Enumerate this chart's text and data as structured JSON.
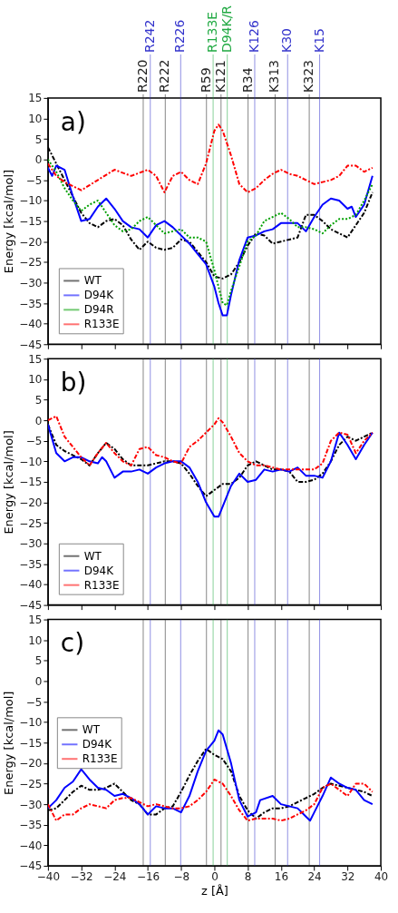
{
  "chart_data": [
    {
      "type": "line",
      "annotations": [
        "a)"
      ],
      "ylabel": "Energy [kcal/mol]",
      "xlim": [
        -40,
        40
      ],
      "xticks": [
        -40,
        -32,
        -24,
        -16,
        -8,
        0,
        8,
        16,
        24,
        32,
        40
      ],
      "ylim": [
        -45,
        15
      ],
      "yticks": [
        -45,
        -40,
        -35,
        -30,
        -25,
        -20,
        -15,
        -10,
        -5,
        0,
        5,
        10,
        15
      ],
      "tick_labels": "y",
      "grid": false,
      "legend": "bottom left",
      "ref_lines": [
        {
          "axis": "x",
          "value": -17.1,
          "label": "R220",
          "color": "#222222"
        },
        {
          "axis": "x",
          "value": -15.4,
          "label": "R242",
          "color": "#3333cc"
        },
        {
          "axis": "x",
          "value": -11.8,
          "label": "R222",
          "color": "#222222"
        },
        {
          "axis": "x",
          "value": -8.1,
          "label": "R226",
          "color": "#3333cc"
        },
        {
          "axis": "x",
          "value": -1.9,
          "label": "R59",
          "color": "#222222"
        },
        {
          "axis": "x",
          "value": -0.3,
          "label": "R133E",
          "color": "#22aa44"
        },
        {
          "axis": "x",
          "value": 1.6,
          "label": "K121",
          "color": "#222222"
        },
        {
          "axis": "x",
          "value": 3.1,
          "label": "D94K/R",
          "color": "#22aa44"
        },
        {
          "axis": "x",
          "value": 8.1,
          "label": "R34",
          "color": "#222222"
        },
        {
          "axis": "x",
          "value": 9.7,
          "label": "K126",
          "color": "#3333cc"
        },
        {
          "axis": "x",
          "value": 14.6,
          "label": "K313",
          "color": "#222222"
        },
        {
          "axis": "x",
          "value": 17.6,
          "label": "K30",
          "color": "#3333cc"
        },
        {
          "axis": "x",
          "value": 22.8,
          "label": "K323",
          "color": "#222222"
        },
        {
          "axis": "x",
          "value": 25.3,
          "label": "K15",
          "color": "#3333cc"
        }
      ],
      "series": [
        {
          "name": "WT",
          "color": "#000000",
          "line_style": "dashed",
          "x": [
            -40,
            -36,
            -32,
            -30,
            -28,
            -26,
            -24,
            -22,
            -20,
            -18,
            -16,
            -14,
            -12,
            -10,
            -8,
            -6,
            -4,
            -2,
            0,
            2,
            4,
            6,
            8,
            10,
            12,
            14,
            16,
            18,
            20,
            22,
            24,
            26,
            28,
            30,
            32,
            34,
            36,
            38
          ],
          "values": [
            3,
            -5,
            -13,
            -15.5,
            -16.5,
            -15,
            -14.5,
            -16,
            -19.5,
            -22,
            -20,
            -21.5,
            -22,
            -21.5,
            -19.5,
            -20,
            -22.5,
            -25,
            -28.5,
            -29,
            -28,
            -25,
            -21,
            -18,
            -18.5,
            -20.5,
            -20,
            -19.5,
            -19,
            -13.5,
            -13.5,
            -15,
            -17,
            -18,
            -19,
            -16,
            -13,
            -8
          ]
        },
        {
          "name": "D94K",
          "color": "#0000ff",
          "line_style": "solid",
          "x": [
            -40,
            -39,
            -38,
            -36,
            -34,
            -32,
            -30,
            -28,
            -26,
            -24,
            -22,
            -20,
            -18,
            -16,
            -14,
            -12,
            -10,
            -8,
            -6,
            -4,
            -2,
            0,
            1,
            2,
            3,
            4,
            6,
            8,
            10,
            12,
            14,
            16,
            18,
            20,
            22,
            24,
            26,
            28,
            30,
            32,
            33,
            34,
            36,
            38
          ],
          "values": [
            -2,
            -4,
            -1.5,
            -2.5,
            -9,
            -15,
            -14.5,
            -11.5,
            -9.5,
            -12,
            -15,
            -16.5,
            -17,
            -19,
            -16,
            -15,
            -16.5,
            -18.5,
            -20.5,
            -23,
            -25.5,
            -31,
            -35,
            -38,
            -38,
            -33,
            -24.5,
            -19,
            -18.5,
            -17.5,
            -17,
            -15.5,
            -15.5,
            -15.5,
            -17.5,
            -14,
            -11,
            -9.5,
            -10,
            -12,
            -11.5,
            -14,
            -11,
            -4
          ]
        },
        {
          "name": "D94R",
          "color": "#00a000",
          "line_style": "dotted",
          "x": [
            -40,
            -38,
            -36,
            -34,
            -32,
            -30,
            -28,
            -26,
            -24,
            -22,
            -20,
            -18,
            -16,
            -14,
            -12,
            -10,
            -8,
            -6,
            -4,
            -2,
            0,
            2,
            3,
            4,
            6,
            8,
            10,
            12,
            14,
            16,
            18,
            20,
            22,
            24,
            26,
            28,
            30,
            32,
            34,
            36,
            38
          ],
          "values": [
            0,
            -3,
            -7,
            -10,
            -12.5,
            -11,
            -10,
            -13,
            -16,
            -17.5,
            -17,
            -15,
            -14,
            -16,
            -18,
            -17.5,
            -17,
            -19,
            -19,
            -20,
            -27,
            -35,
            -35.5,
            -32,
            -26,
            -20,
            -18.5,
            -15,
            -14,
            -13,
            -14.5,
            -16.5,
            -16.5,
            -17,
            -18,
            -16,
            -14.5,
            -14.5,
            -13.5,
            -10,
            -6
          ]
        },
        {
          "name": "R133E",
          "color": "#ff0000",
          "line_style": "dashed",
          "x": [
            -40,
            -38,
            -36,
            -34,
            -32,
            -28,
            -24,
            -20,
            -16,
            -14,
            -12,
            -10,
            -8,
            -6,
            -4,
            -2,
            0,
            1,
            2,
            4,
            6,
            8,
            10,
            12,
            14,
            16,
            18,
            20,
            22,
            24,
            26,
            28,
            30,
            32,
            34,
            36,
            38
          ],
          "values": [
            -1,
            -4,
            -5.5,
            -6.5,
            -7.5,
            -5,
            -2.5,
            -4,
            -2.5,
            -4,
            -8,
            -4,
            -3,
            -5,
            -6,
            -1,
            7,
            8.5,
            7,
            1,
            -6,
            -8,
            -7,
            -5,
            -3.5,
            -2.5,
            -3.5,
            -4,
            -5,
            -6,
            -5.5,
            -5,
            -4,
            -1.5,
            -1.5,
            -3,
            -2
          ]
        }
      ]
    },
    {
      "type": "line",
      "annotations": [
        "b)"
      ],
      "ylabel": "Energy [kcal/mol]",
      "xlim": [
        -40,
        40
      ],
      "xticks": [
        -40,
        -32,
        -24,
        -16,
        -8,
        0,
        8,
        16,
        24,
        32,
        40
      ],
      "ylim": [
        -45,
        15
      ],
      "yticks": [
        -45,
        -40,
        -35,
        -30,
        -25,
        -20,
        -15,
        -10,
        -5,
        0,
        5,
        10,
        15
      ],
      "tick_labels": "y",
      "grid": false,
      "legend": "bottom left",
      "ref_lines": [
        {
          "axis": "x",
          "value": -17.1,
          "color": "#222222"
        },
        {
          "axis": "x",
          "value": -15.4,
          "color": "#3333cc"
        },
        {
          "axis": "x",
          "value": -11.8,
          "color": "#222222"
        },
        {
          "axis": "x",
          "value": -8.1,
          "color": "#3333cc"
        },
        {
          "axis": "x",
          "value": -1.9,
          "color": "#222222"
        },
        {
          "axis": "x",
          "value": -0.3,
          "color": "#22aa44"
        },
        {
          "axis": "x",
          "value": 1.6,
          "color": "#222222"
        },
        {
          "axis": "x",
          "value": 3.1,
          "color": "#22aa44"
        },
        {
          "axis": "x",
          "value": 8.1,
          "color": "#222222"
        },
        {
          "axis": "x",
          "value": 9.7,
          "color": "#3333cc"
        },
        {
          "axis": "x",
          "value": 14.6,
          "color": "#222222"
        },
        {
          "axis": "x",
          "value": 17.6,
          "color": "#3333cc"
        },
        {
          "axis": "x",
          "value": 22.8,
          "color": "#222222"
        },
        {
          "axis": "x",
          "value": 25.3,
          "color": "#3333cc"
        }
      ],
      "series": [
        {
          "name": "WT",
          "color": "#000000",
          "line_style": "dashed",
          "x": [
            -40,
            -38,
            -36,
            -34,
            -32,
            -30,
            -28,
            -26,
            -24,
            -22,
            -20,
            -18,
            -16,
            -14,
            -12,
            -10,
            -8,
            -6,
            -4,
            -2,
            0,
            2,
            4,
            6,
            8,
            10,
            12,
            14,
            16,
            18,
            20,
            22,
            24,
            26,
            28,
            30,
            32,
            34,
            36,
            38
          ],
          "values": [
            -1,
            -6,
            -7.5,
            -8.5,
            -9.5,
            -11,
            -8,
            -5.5,
            -7,
            -9.5,
            -11,
            -11,
            -11,
            -10.5,
            -10,
            -10,
            -10.5,
            -13,
            -16,
            -18.5,
            -17,
            -15.5,
            -15.5,
            -14,
            -11,
            -10,
            -11,
            -12,
            -12,
            -12.5,
            -15,
            -15,
            -14.5,
            -13,
            -10,
            -6,
            -4,
            -5,
            -4,
            -3
          ]
        },
        {
          "name": "D94K",
          "color": "#0000ff",
          "line_style": "solid",
          "x": [
            -40,
            -38,
            -36,
            -34,
            -32,
            -30,
            -28,
            -27,
            -26,
            -24,
            -22,
            -20,
            -18,
            -16,
            -14,
            -12,
            -10,
            -8,
            -6,
            -4,
            -2,
            0,
            1,
            2,
            4,
            6,
            8,
            10,
            12,
            14,
            16,
            18,
            20,
            22,
            24,
            26,
            28,
            30,
            32,
            34,
            36,
            38
          ],
          "values": [
            -1,
            -8,
            -10,
            -9,
            -9,
            -10,
            -10.5,
            -9,
            -10,
            -14,
            -12.5,
            -12.5,
            -12,
            -13,
            -11.5,
            -10.5,
            -10,
            -10,
            -11.5,
            -15,
            -20,
            -23.5,
            -23.5,
            -21,
            -16,
            -13,
            -15,
            -14.5,
            -12,
            -12.5,
            -12,
            -12.5,
            -11.5,
            -13.5,
            -13.5,
            -14,
            -10,
            -3,
            -6,
            -9.5,
            -6,
            -3
          ]
        },
        {
          "name": "R133E",
          "color": "#ff0000",
          "line_style": "dashed",
          "x": [
            -40,
            -38,
            -36,
            -34,
            -32,
            -30,
            -28,
            -26,
            -24,
            -22,
            -20,
            -18,
            -16,
            -14,
            -12,
            -10,
            -8,
            -6,
            -4,
            -2,
            0,
            1,
            2,
            4,
            6,
            8,
            10,
            12,
            14,
            16,
            18,
            20,
            22,
            24,
            26,
            28,
            30,
            32,
            34,
            36,
            38
          ],
          "values": [
            0,
            1,
            -4,
            -6.5,
            -9,
            -11,
            -8,
            -5.5,
            -8,
            -10,
            -11,
            -7,
            -6.5,
            -8.5,
            -9,
            -10,
            -10.5,
            -6.5,
            -5,
            -3,
            -1,
            0.5,
            -0.5,
            -4,
            -8,
            -10,
            -11,
            -11,
            -11.5,
            -12,
            -12,
            -12,
            -12,
            -12,
            -10.5,
            -5,
            -3,
            -3.5,
            -8,
            -5,
            -3
          ]
        }
      ]
    },
    {
      "type": "line",
      "annotations": [
        "c)"
      ],
      "ylabel": "Energy [kcal/mol]",
      "xlabel": "z [Å]",
      "xlim": [
        -40,
        40
      ],
      "xticks": [
        -40,
        -32,
        -24,
        -16,
        -8,
        0,
        8,
        16,
        24,
        32,
        40
      ],
      "ylim": [
        -45,
        15
      ],
      "yticks": [
        -45,
        -40,
        -35,
        -30,
        -25,
        -20,
        -15,
        -10,
        -5,
        0,
        5,
        10,
        15
      ],
      "grid": false,
      "legend": "left",
      "ref_lines": [
        {
          "axis": "x",
          "value": -17.1,
          "color": "#222222"
        },
        {
          "axis": "x",
          "value": -15.4,
          "color": "#3333cc"
        },
        {
          "axis": "x",
          "value": -11.8,
          "color": "#222222"
        },
        {
          "axis": "x",
          "value": -8.1,
          "color": "#3333cc"
        },
        {
          "axis": "x",
          "value": -1.9,
          "color": "#222222"
        },
        {
          "axis": "x",
          "value": -0.3,
          "color": "#22aa44"
        },
        {
          "axis": "x",
          "value": 1.6,
          "color": "#222222"
        },
        {
          "axis": "x",
          "value": 3.1,
          "color": "#22aa44"
        },
        {
          "axis": "x",
          "value": 8.1,
          "color": "#222222"
        },
        {
          "axis": "x",
          "value": 9.7,
          "color": "#3333cc"
        },
        {
          "axis": "x",
          "value": 14.6,
          "color": "#222222"
        },
        {
          "axis": "x",
          "value": 17.6,
          "color": "#3333cc"
        },
        {
          "axis": "x",
          "value": 22.8,
          "color": "#222222"
        },
        {
          "axis": "x",
          "value": 25.3,
          "color": "#3333cc"
        }
      ],
      "series": [
        {
          "name": "WT",
          "color": "#000000",
          "line_style": "dashed",
          "x": [
            -40,
            -38,
            -36,
            -34,
            -32,
            -30,
            -28,
            -26,
            -24,
            -22,
            -20,
            -18,
            -16,
            -14,
            -12,
            -10,
            -8,
            -6,
            -4,
            -2,
            0,
            2,
            4,
            6,
            8,
            10,
            12,
            14,
            16,
            18,
            20,
            22,
            24,
            26,
            28,
            30,
            32,
            34,
            36,
            38
          ],
          "values": [
            -31.5,
            -31,
            -29,
            -27,
            -25.5,
            -26.5,
            -26.5,
            -26,
            -25,
            -27,
            -29,
            -30,
            -32.5,
            -32.5,
            -31,
            -30.5,
            -27,
            -23,
            -19.5,
            -16.5,
            -18,
            -19,
            -22,
            -28,
            -31.5,
            -33.5,
            -32,
            -31,
            -31,
            -30.5,
            -29.5,
            -28.5,
            -27.5,
            -26,
            -25,
            -25.5,
            -26,
            -26.5,
            -27,
            -28
          ]
        },
        {
          "name": "D94K",
          "color": "#0000ff",
          "line_style": "solid",
          "x": [
            -40,
            -38,
            -36,
            -34,
            -32,
            -30,
            -28,
            -26,
            -24,
            -22,
            -20,
            -18,
            -16,
            -14,
            -12,
            -10,
            -8,
            -6,
            -4,
            -2,
            0,
            1,
            2,
            4,
            6,
            8,
            10,
            11,
            14,
            16,
            18,
            20,
            22,
            23,
            24,
            26,
            28,
            30,
            32,
            34,
            36,
            38
          ],
          "values": [
            -31,
            -29,
            -26,
            -24.5,
            -21.5,
            -24,
            -26,
            -26.5,
            -28,
            -27.5,
            -28.5,
            -30,
            -32.5,
            -30.5,
            -31,
            -31,
            -32,
            -28,
            -22,
            -17,
            -14.5,
            -12,
            -13,
            -20,
            -29,
            -33,
            -32,
            -29,
            -28,
            -30,
            -30.5,
            -31,
            -33,
            -34,
            -32,
            -28,
            -23.5,
            -25,
            -26,
            -26.5,
            -29,
            -30
          ]
        },
        {
          "name": "R133E",
          "color": "#ff0000",
          "line_style": "dashed",
          "x": [
            -40,
            -38,
            -36,
            -34,
            -32,
            -30,
            -28,
            -26,
            -24,
            -22,
            -20,
            -18,
            -16,
            -14,
            -12,
            -10,
            -8,
            -6,
            -4,
            -2,
            0,
            2,
            4,
            6,
            8,
            10,
            12,
            14,
            16,
            18,
            20,
            22,
            24,
            26,
            28,
            30,
            32,
            34,
            36,
            38
          ],
          "values": [
            -30,
            -34,
            -32.5,
            -32.5,
            -31,
            -30,
            -30.5,
            -31,
            -29,
            -28.5,
            -28.5,
            -29.5,
            -30.5,
            -30,
            -30.5,
            -31,
            -31,
            -30.5,
            -29,
            -27,
            -24,
            -25,
            -28,
            -31.5,
            -34,
            -33.5,
            -33.5,
            -33.5,
            -34,
            -33.5,
            -32.5,
            -31.5,
            -30,
            -26,
            -25,
            -26.5,
            -28,
            -25,
            -25,
            -27
          ]
        }
      ]
    }
  ]
}
